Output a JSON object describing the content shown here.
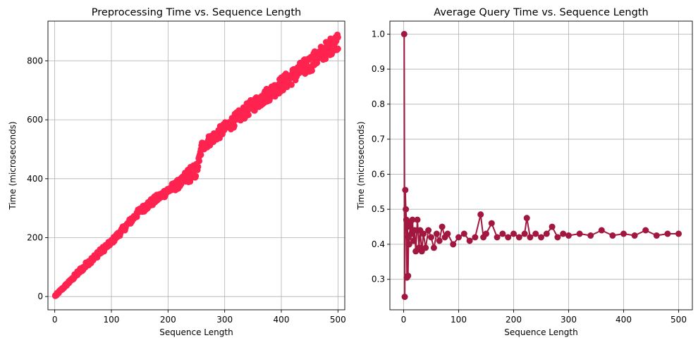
{
  "chart_data": [
    {
      "type": "scatter",
      "title": "Preprocessing Time vs. Sequence Length",
      "xlabel": "Sequence Length",
      "ylabel": "Time (microseconds)",
      "xlim": [
        -12,
        512
      ],
      "ylim": [
        -45,
        935
      ],
      "xticks": [
        0,
        100,
        200,
        300,
        400,
        500
      ],
      "yticks": [
        0,
        200,
        400,
        600,
        800
      ],
      "grid": true,
      "color": "#ff2350",
      "trend": {
        "description": "Near-linear growth with moderate noise",
        "x": [
          1,
          50,
          100,
          150,
          200,
          250,
          260,
          300,
          350,
          400,
          450,
          500
        ],
        "y": [
          3,
          95,
          185,
          290,
          360,
          420,
          510,
          570,
          650,
          720,
          790,
          870
        ]
      },
      "series": [
        {
          "x": [
            1,
            2,
            3,
            5,
            8,
            10,
            15,
            20,
            25,
            30,
            35,
            40,
            45,
            50,
            55,
            60,
            65,
            70,
            75,
            80,
            85,
            90,
            95,
            100,
            105,
            110,
            115,
            120,
            125,
            130,
            135,
            140,
            145,
            150,
            155,
            160,
            165,
            170,
            175,
            180,
            185,
            190,
            195,
            200,
            205,
            210,
            215,
            220,
            225,
            230,
            235,
            240,
            245,
            250,
            255,
            258,
            262,
            265,
            270,
            275,
            280,
            285,
            290,
            295,
            300,
            305,
            310,
            315,
            320,
            325,
            330,
            335,
            340,
            345,
            350,
            355,
            360,
            365,
            370,
            375,
            380,
            385,
            390,
            395,
            400,
            405,
            410,
            415,
            420,
            425,
            430,
            435,
            440,
            445,
            450,
            455,
            460,
            465,
            470,
            475,
            480,
            485,
            490,
            495,
            500
          ],
          "y": [
            2,
            5,
            4,
            10,
            18,
            20,
            30,
            42,
            52,
            60,
            75,
            85,
            95,
            100,
            115,
            120,
            130,
            140,
            150,
            160,
            168,
            175,
            185,
            190,
            200,
            205,
            215,
            225,
            240,
            250,
            265,
            270,
            285,
            290,
            300,
            310,
            320,
            330,
            335,
            342,
            345,
            350,
            355,
            365,
            370,
            380,
            390,
            395,
            405,
            420,
            430,
            440,
            445,
            450,
            460,
            500,
            520,
            515,
            520,
            530,
            540,
            545,
            555,
            565,
            575,
            580,
            590,
            598,
            600,
            610,
            620,
            630,
            640,
            645,
            650,
            660,
            670,
            680,
            690,
            700,
            705,
            710,
            715,
            720,
            730,
            735,
            740,
            750,
            760,
            770,
            775,
            785,
            790,
            800,
            805,
            815,
            820,
            825,
            835,
            840,
            850,
            855,
            860,
            870,
            880
          ]
        }
      ]
    },
    {
      "type": "line",
      "title": "Average Query Time vs. Sequence Length",
      "xlabel": "Sequence Length",
      "ylabel": "Time (microseconds)",
      "xlim": [
        -25,
        525
      ],
      "ylim": [
        0.213,
        1.037
      ],
      "xticks": [
        0,
        100,
        200,
        300,
        400,
        500
      ],
      "yticks": [
        0.3,
        0.4,
        0.5,
        0.6,
        0.7,
        0.8,
        0.9,
        1.0
      ],
      "grid": true,
      "color": "#a2173f",
      "markers": true,
      "series": [
        {
          "x": [
            1,
            2,
            3,
            4,
            5,
            6,
            7,
            8,
            9,
            10,
            12,
            14,
            16,
            18,
            20,
            22,
            25,
            28,
            30,
            33,
            36,
            40,
            45,
            50,
            55,
            60,
            65,
            70,
            75,
            80,
            90,
            100,
            110,
            120,
            130,
            140,
            145,
            150,
            160,
            170,
            180,
            190,
            200,
            210,
            220,
            224,
            230,
            240,
            250,
            260,
            270,
            280,
            290,
            300,
            320,
            340,
            360,
            380,
            400,
            420,
            440,
            460,
            480,
            500
          ],
          "y": [
            1.0,
            0.25,
            0.555,
            0.5,
            0.47,
            0.305,
            0.45,
            0.31,
            0.42,
            0.4,
            0.46,
            0.43,
            0.47,
            0.41,
            0.44,
            0.38,
            0.47,
            0.39,
            0.44,
            0.38,
            0.43,
            0.39,
            0.44,
            0.42,
            0.39,
            0.43,
            0.41,
            0.45,
            0.42,
            0.43,
            0.4,
            0.42,
            0.43,
            0.41,
            0.42,
            0.485,
            0.42,
            0.43,
            0.46,
            0.42,
            0.43,
            0.42,
            0.43,
            0.42,
            0.43,
            0.475,
            0.42,
            0.43,
            0.42,
            0.43,
            0.45,
            0.42,
            0.43,
            0.425,
            0.43,
            0.425,
            0.44,
            0.425,
            0.43,
            0.425,
            0.44,
            0.425,
            0.43,
            0.43
          ]
        }
      ]
    }
  ]
}
